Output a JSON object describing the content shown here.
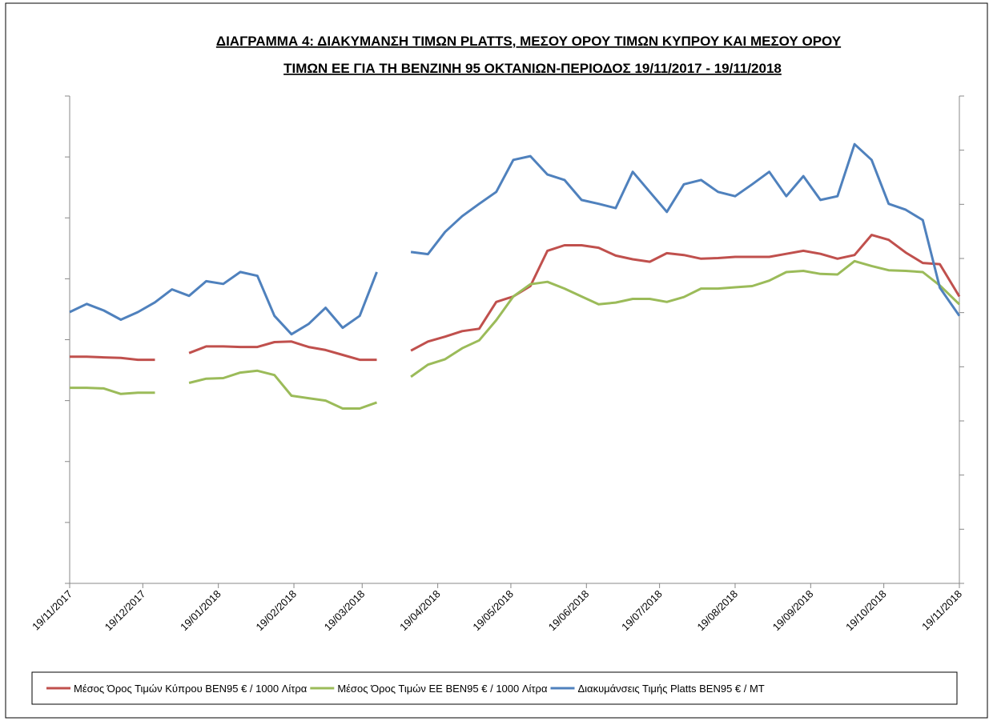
{
  "chart_data": {
    "type": "line",
    "title": [
      "ΔΙΑΓΡΑΜΜΑ 4: ΔΙΑΚΥΜΑΝΣΗ ΤΙΜΩΝ PLATTS, ΜΕΣΟΥ ΟΡΟΥ ΤΙΜΩΝ ΚΥΠΡΟΥ ΚΑΙ ΜΕΣΟΥ ΟΡΟΥ",
      "ΤΙΜΩΝ ΕΕ ΓΙΑ ΤΗ ΒΕΝΖΙΝΗ 95 ΟΚΤΑΝΙΩΝ-ΠΕΡΙΟΔΟΣ  19/11/2017 - 19/11/2018"
    ],
    "x": [
      "19/11/2017",
      "26/11/2017",
      "03/12/2017",
      "10/12/2017",
      "17/12/2017",
      "24/12/2017",
      "31/12/2017",
      "07/01/2018",
      "14/01/2018",
      "21/01/2018",
      "28/01/2018",
      "04/02/2018",
      "11/02/2018",
      "18/02/2018",
      "25/02/2018",
      "04/03/2018",
      "11/03/2018",
      "18/03/2018",
      "25/03/2018",
      "01/04/2018",
      "08/04/2018",
      "15/04/2018",
      "22/04/2018",
      "29/04/2018",
      "06/05/2018",
      "13/05/2018",
      "20/05/2018",
      "27/05/2018",
      "03/06/2018",
      "10/06/2018",
      "17/06/2018",
      "24/06/2018",
      "01/07/2018",
      "08/07/2018",
      "15/07/2018",
      "22/07/2018",
      "29/07/2018",
      "05/08/2018",
      "12/08/2018",
      "19/08/2018",
      "26/08/2018",
      "02/09/2018",
      "09/09/2018",
      "16/09/2018",
      "23/09/2018",
      "30/09/2018",
      "07/10/2018",
      "14/10/2018",
      "21/10/2018",
      "28/10/2018",
      "04/11/2018",
      "11/11/2018",
      "19/11/2018"
    ],
    "xlim": [
      "19/11/2017",
      "19/11/2018"
    ],
    "xticks": [
      "19/11/2017",
      "19/12/2017",
      "19/01/2018",
      "19/02/2018",
      "19/03/2018",
      "19/04/2018",
      "19/05/2018",
      "19/06/2018",
      "19/07/2018",
      "19/08/2018",
      "19/09/2018",
      "19/10/2018",
      "19/11/2018"
    ],
    "ylim": [
      0,
      8
    ],
    "yticks": [
      0,
      1,
      2,
      3,
      4,
      5,
      6,
      7,
      8
    ],
    "y2lim": [
      0,
      9
    ],
    "y2ticks": [
      0,
      1,
      2,
      3,
      4,
      5,
      6,
      7,
      8,
      9
    ],
    "legend": "bottom",
    "series": [
      {
        "name": "Μέσος Όρος Τιμών  Κύπρου BEN95 € / 1000  Λίτρα",
        "color": "#c0504d",
        "values": [
          3.72,
          3.72,
          3.71,
          3.7,
          3.67,
          3.67,
          null,
          3.78,
          3.89,
          3.89,
          3.88,
          3.88,
          3.96,
          3.97,
          3.88,
          3.83,
          3.75,
          3.67,
          3.67,
          null,
          3.82,
          3.97,
          4.05,
          4.14,
          4.18,
          4.62,
          4.71,
          4.88,
          5.46,
          5.55,
          5.55,
          5.51,
          5.38,
          5.32,
          5.28,
          5.42,
          5.39,
          5.33,
          5.34,
          5.36,
          5.36,
          5.36,
          5.41,
          5.46,
          5.41,
          5.33,
          5.39,
          5.72,
          5.64,
          5.43,
          5.26,
          5.24,
          4.71
        ]
      },
      {
        "name": "Μέσος Όρος Τιμών ΕΕ BEN95 € / 1000  Λίτρα",
        "color": "#9bbb59",
        "values": [
          3.21,
          3.21,
          3.2,
          3.11,
          3.13,
          3.13,
          null,
          3.29,
          3.36,
          3.37,
          3.46,
          3.49,
          3.42,
          3.08,
          3.04,
          3.0,
          2.87,
          2.87,
          2.97,
          null,
          3.39,
          3.59,
          3.68,
          3.86,
          3.99,
          4.32,
          4.71,
          4.91,
          4.95,
          4.84,
          4.71,
          4.58,
          4.61,
          4.67,
          4.67,
          4.62,
          4.7,
          4.84,
          4.84,
          4.86,
          4.88,
          4.97,
          5.11,
          5.13,
          5.08,
          5.07,
          5.29,
          5.21,
          5.14,
          5.13,
          5.11,
          4.89,
          4.58
        ]
      },
      {
        "name": "Διακυμάνσεις Τιμής Platts BEN95 € / MT",
        "color": "#4f81bd",
        "axis": "y2",
        "values": [
          5.01,
          5.16,
          5.04,
          4.87,
          5.01,
          5.19,
          5.43,
          5.31,
          5.58,
          5.53,
          5.75,
          5.68,
          4.94,
          4.6,
          4.79,
          5.09,
          4.72,
          4.94,
          5.75,
          null,
          6.12,
          6.08,
          6.49,
          6.78,
          7.01,
          7.23,
          7.82,
          7.89,
          7.55,
          7.45,
          7.08,
          7.01,
          6.93,
          7.6,
          7.23,
          6.86,
          7.37,
          7.45,
          7.23,
          7.15,
          7.37,
          7.6,
          7.15,
          7.52,
          7.08,
          7.15,
          8.11,
          7.82,
          7.01,
          6.9,
          6.71,
          5.46,
          4.94
        ]
      }
    ]
  }
}
